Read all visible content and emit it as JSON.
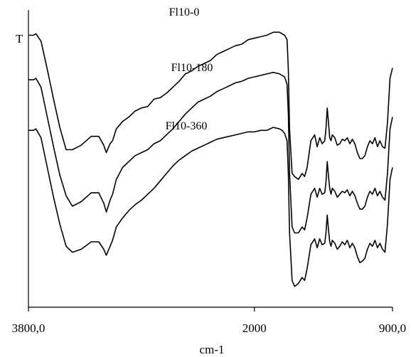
{
  "chart_data": {
    "type": "line",
    "title": "",
    "xlabel": "cm-1",
    "ylabel": "T",
    "x_direction": "decreasing",
    "xlim": [
      3800,
      900
    ],
    "x_ticks": [
      {
        "value": 3800,
        "label": "3800,0"
      },
      {
        "value": 2000,
        "label": "2000"
      },
      {
        "value": 900,
        "label": "900,0"
      }
    ],
    "ylim": [
      0,
      100
    ],
    "y_ticks_shown": false,
    "grid": false,
    "legend": "none (series labeled inline)",
    "series": [
      {
        "name": "Fl10-0",
        "x": [
          3800,
          3760,
          3740,
          3700,
          3650,
          3600,
          3550,
          3500,
          3450,
          3380,
          3300,
          3240,
          3200,
          3180,
          3150,
          3130,
          3100,
          3050,
          3000,
          2950,
          2900,
          2850,
          2800,
          2750,
          2700,
          2650,
          2600,
          2550,
          2500,
          2450,
          2400,
          2350,
          2300,
          2250,
          2200,
          2150,
          2100,
          2050,
          2000,
          1950,
          1900,
          1850,
          1800,
          1780,
          1760,
          1740,
          1730,
          1720,
          1700,
          1680,
          1650,
          1620,
          1600,
          1580,
          1550,
          1520,
          1500,
          1480,
          1460,
          1440,
          1430,
          1420,
          1410,
          1400,
          1390,
          1380,
          1360,
          1340,
          1320,
          1300,
          1280,
          1260,
          1240,
          1220,
          1200,
          1180,
          1160,
          1140,
          1120,
          1100,
          1080,
          1060,
          1040,
          1020,
          1000,
          980,
          960,
          940,
          920,
          900
        ],
        "y": [
          91.5,
          91.5,
          92,
          89.5,
          80,
          70,
          60.5,
          53,
          53,
          54.5,
          57.5,
          57.5,
          54.5,
          52,
          55,
          56,
          60,
          62.5,
          64,
          66,
          67,
          67.5,
          70,
          70.5,
          72,
          74,
          76,
          78.5,
          79.5,
          81,
          82,
          83,
          85,
          86,
          87,
          88,
          88.5,
          90,
          90.5,
          91,
          91.5,
          92.5,
          92.5,
          92,
          91.5,
          90,
          80,
          60,
          45,
          44,
          43,
          45,
          44,
          47,
          56,
          58,
          54,
          57,
          55,
          56,
          60,
          67,
          62,
          57,
          56,
          58,
          57,
          54.5,
          55,
          56.5,
          56,
          57,
          55,
          56.5,
          55,
          52,
          50,
          50,
          51,
          54,
          56,
          55,
          57,
          54,
          56,
          54,
          53.5,
          62,
          77,
          80.5
        ]
      },
      {
        "name": "Fl10-180",
        "x": [
          3800,
          3760,
          3740,
          3700,
          3650,
          3600,
          3550,
          3500,
          3450,
          3380,
          3300,
          3240,
          3200,
          3180,
          3150,
          3130,
          3100,
          3050,
          3000,
          2950,
          2900,
          2850,
          2800,
          2750,
          2700,
          2650,
          2600,
          2550,
          2500,
          2450,
          2400,
          2350,
          2300,
          2250,
          2200,
          2150,
          2100,
          2050,
          2000,
          1950,
          1900,
          1850,
          1800,
          1780,
          1760,
          1740,
          1730,
          1720,
          1700,
          1680,
          1650,
          1620,
          1600,
          1580,
          1550,
          1520,
          1500,
          1480,
          1460,
          1440,
          1430,
          1420,
          1410,
          1400,
          1390,
          1380,
          1360,
          1340,
          1320,
          1300,
          1280,
          1260,
          1240,
          1220,
          1200,
          1180,
          1160,
          1140,
          1120,
          1100,
          1080,
          1060,
          1040,
          1020,
          1000,
          980,
          960,
          940,
          920,
          900
        ],
        "y": [
          76.5,
          76.5,
          77,
          74,
          64,
          54,
          44.5,
          37.5,
          34,
          35.5,
          38.5,
          38.5,
          35,
          32,
          36,
          38,
          43,
          47,
          49,
          51,
          52,
          53,
          55,
          56,
          58,
          60,
          62.5,
          65,
          67,
          69,
          70,
          71,
          72.5,
          73.5,
          74.5,
          75.5,
          76,
          77,
          77.5,
          78,
          78.5,
          79,
          78.5,
          78,
          77.5,
          75,
          65,
          45,
          27,
          25,
          25,
          27,
          26,
          30,
          38,
          40,
          37,
          40,
          38,
          38.5,
          42,
          49,
          44,
          40,
          38,
          40,
          39,
          37,
          38,
          39,
          38.5,
          39.5,
          37.5,
          39,
          37.5,
          35,
          33,
          33,
          34,
          37,
          39,
          38,
          40,
          37.5,
          39,
          37,
          36,
          45,
          60,
          64
        ]
      },
      {
        "name": "Fl10-360",
        "x": [
          3800,
          3760,
          3740,
          3700,
          3650,
          3600,
          3550,
          3500,
          3450,
          3380,
          3300,
          3240,
          3200,
          3180,
          3150,
          3130,
          3100,
          3050,
          3000,
          2950,
          2900,
          2850,
          2800,
          2750,
          2700,
          2650,
          2600,
          2550,
          2500,
          2450,
          2400,
          2350,
          2300,
          2250,
          2200,
          2150,
          2100,
          2050,
          2000,
          1950,
          1900,
          1850,
          1800,
          1780,
          1760,
          1740,
          1730,
          1720,
          1700,
          1680,
          1650,
          1620,
          1600,
          1580,
          1550,
          1520,
          1500,
          1480,
          1460,
          1440,
          1430,
          1420,
          1410,
          1400,
          1390,
          1380,
          1360,
          1340,
          1320,
          1300,
          1280,
          1260,
          1240,
          1220,
          1200,
          1180,
          1160,
          1140,
          1120,
          1100,
          1080,
          1060,
          1040,
          1020,
          1000,
          980,
          960,
          940,
          920,
          900
        ],
        "y": [
          59.5,
          59.5,
          60,
          57,
          47,
          37,
          28,
          20.5,
          18.5,
          19.5,
          22,
          22,
          19.5,
          17.5,
          20.5,
          22.5,
          27,
          30,
          32.5,
          34.5,
          36,
          38,
          40,
          42.5,
          45,
          47.5,
          49.5,
          51,
          52.5,
          53.5,
          54.5,
          55.5,
          56.5,
          57,
          57.5,
          58,
          58.5,
          59,
          59,
          59.5,
          59.5,
          60.5,
          60,
          59.5,
          58.5,
          56,
          45,
          25,
          9,
          7,
          8,
          10,
          9,
          13,
          21,
          23,
          20,
          23,
          21,
          21.5,
          25,
          31,
          26,
          22,
          20.5,
          22.5,
          21.5,
          19.5,
          20.5,
          22,
          21,
          22.5,
          20,
          21.5,
          20,
          17,
          15,
          15.5,
          16.5,
          19.5,
          21.5,
          20.5,
          22.5,
          20,
          21.5,
          19.5,
          18.5,
          28,
          43,
          47
        ]
      }
    ],
    "annotations": [
      {
        "text": "Fl10-0",
        "series": "Fl10-0"
      },
      {
        "text": "Fl10-180",
        "series": "Fl10-180"
      },
      {
        "text": "Fl10-360",
        "series": "Fl10-360"
      }
    ]
  }
}
